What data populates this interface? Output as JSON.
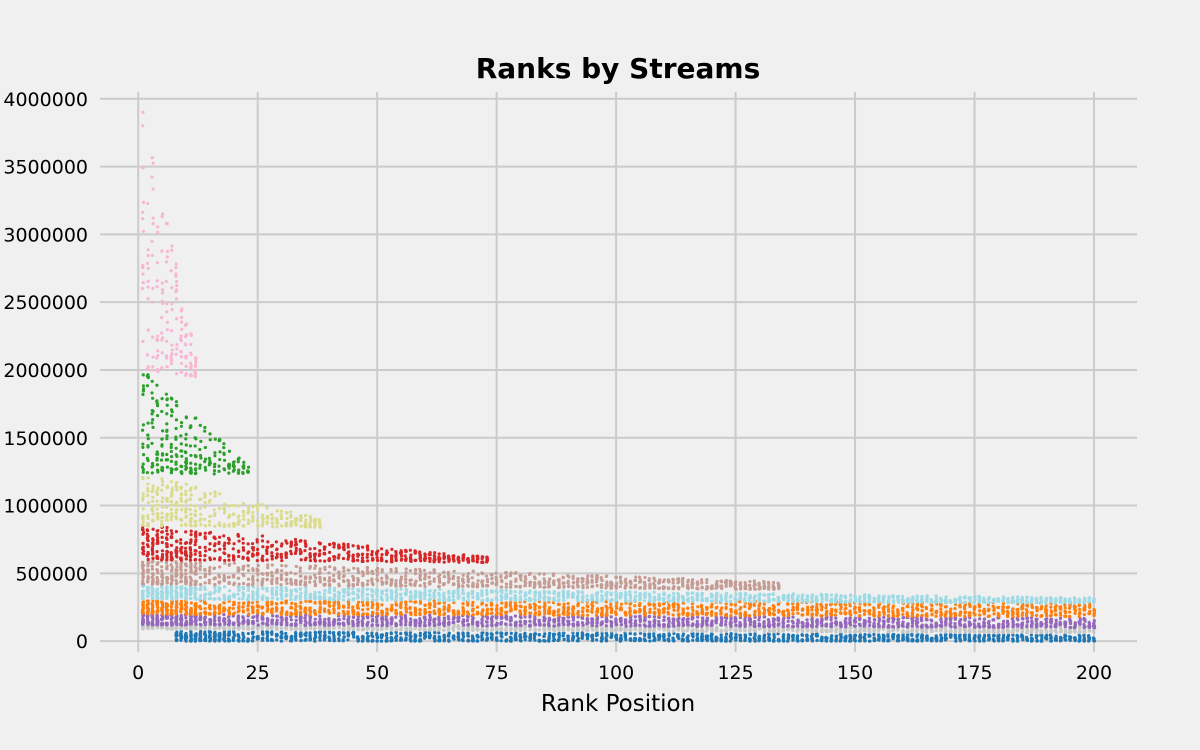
{
  "chart_data": {
    "type": "scatter",
    "title": "Ranks by Streams",
    "xlabel": "Rank Position",
    "ylabel": "",
    "xlim": [
      -8,
      209
    ],
    "ylim": [
      -80000,
      4050000
    ],
    "x_ticks": [
      0,
      25,
      50,
      75,
      100,
      125,
      150,
      175,
      200
    ],
    "x_tick_labels": [
      "0",
      "25",
      "50",
      "75",
      "100",
      "125",
      "150",
      "175",
      "200"
    ],
    "y_ticks": [
      0,
      500000,
      1000000,
      1500000,
      2000000,
      2500000,
      3000000,
      3500000,
      4000000
    ],
    "y_tick_labels": [
      "0",
      "500000",
      "1000000",
      "1500000",
      "2000000",
      "2500000",
      "3000000",
      "3500000",
      "4000000"
    ],
    "grid": true,
    "legend": "none",
    "marker": "small dots",
    "series": [
      {
        "color": "#1f77b4",
        "x_range": [
          8,
          200
        ],
        "band_ranges": [
          [
            8,
            0,
            75000
          ],
          [
            200,
            0,
            45000
          ]
        ]
      },
      {
        "color": "#c7c7c7",
        "x_range": [
          1,
          200
        ],
        "band_ranges": [
          [
            1,
            90000,
            140000
          ],
          [
            200,
            60000,
            110000
          ]
        ]
      },
      {
        "color": "#9467bd",
        "x_range": [
          1,
          200
        ],
        "band_ranges": [
          [
            1,
            120000,
            200000
          ],
          [
            200,
            100000,
            170000
          ]
        ]
      },
      {
        "color": "#ff7f0e",
        "x_range": [
          1,
          200
        ],
        "band_ranges": [
          [
            1,
            200000,
            300000
          ],
          [
            200,
            180000,
            290000
          ]
        ]
      },
      {
        "color": "#9edae5",
        "x_range": [
          1,
          200
        ],
        "band_ranges": [
          [
            1,
            310000,
            410000
          ],
          [
            200,
            280000,
            320000
          ]
        ]
      },
      {
        "color": "#c49c94",
        "x_range": [
          1,
          134
        ],
        "band_ranges": [
          [
            1,
            420000,
            600000
          ],
          [
            134,
            380000,
            440000
          ]
        ]
      },
      {
        "color": "#d62728",
        "x_range": [
          1,
          73
        ],
        "band_ranges": [
          [
            1,
            600000,
            860000
          ],
          [
            73,
            580000,
            620000
          ]
        ]
      },
      {
        "color": "#dbdb8d",
        "x_range": [
          1,
          38
        ],
        "band_ranges": [
          [
            1,
            850000,
            1240000
          ],
          [
            38,
            840000,
            900000
          ]
        ]
      },
      {
        "color": "#2ca02c",
        "x_range": [
          1,
          23
        ],
        "band_ranges": [
          [
            1,
            1240000,
            2000000
          ],
          [
            23,
            1230000,
            1300000
          ]
        ]
      },
      {
        "color": "#f7b6d2",
        "x_range": [
          1,
          12
        ],
        "band_ranges": [
          [
            1,
            2000000,
            3980000
          ],
          [
            12,
            1950000,
            2100000
          ]
        ]
      }
    ]
  }
}
